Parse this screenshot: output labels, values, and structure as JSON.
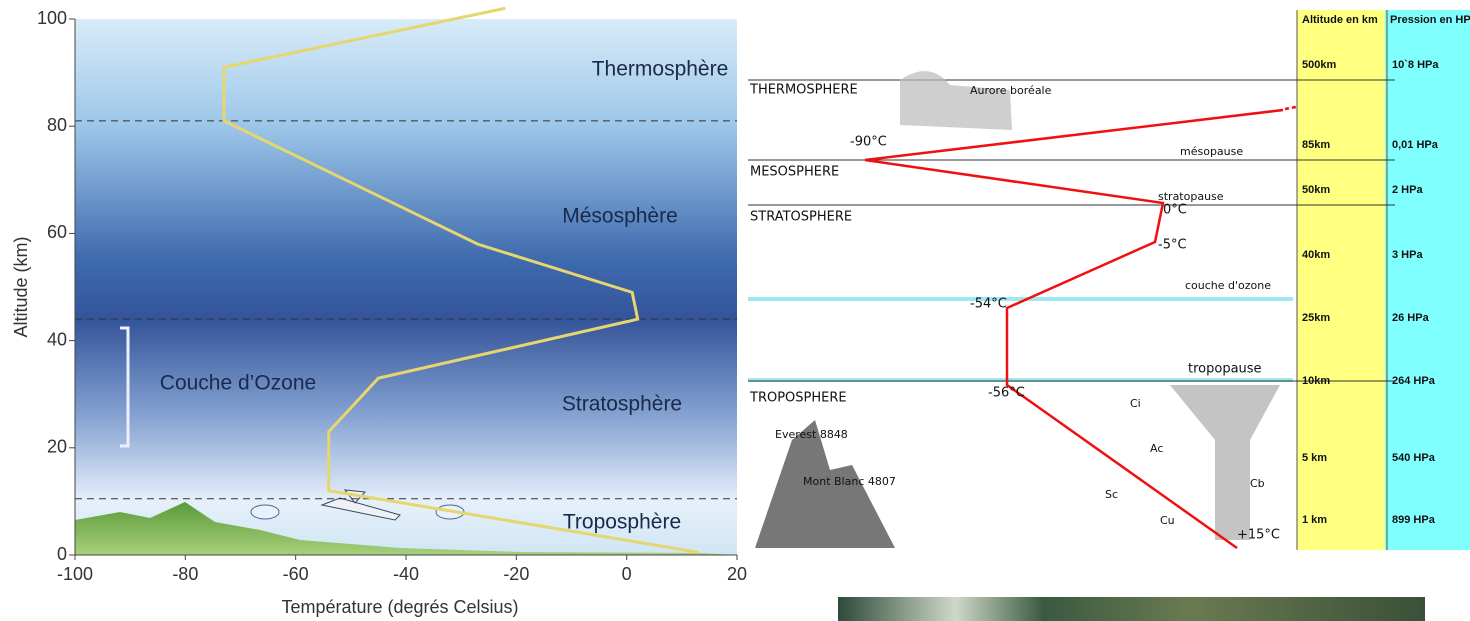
{
  "chart_data": {
    "type": "line",
    "x_label": "Température (degrés Celsius)",
    "y_label": "Altitude (km)",
    "x": [
      13,
      -54,
      -54,
      -45,
      2,
      1,
      -27,
      -73,
      -73,
      -22
    ],
    "values": [
      0.5,
      12,
      23,
      33,
      44,
      49,
      58,
      81,
      91,
      102
    ],
    "color": "#e6d66e",
    "xlim": [
      -100,
      20
    ],
    "xticks": [
      -100,
      -80,
      -60,
      -40,
      -20,
      0,
      20
    ],
    "ylim": [
      0,
      100
    ],
    "yticks": [
      0,
      20,
      40,
      60,
      80,
      100
    ],
    "boundaries": [
      10.5,
      44,
      81
    ],
    "annotations": [
      "Thermosphère",
      "Mésosphère",
      "Stratosphère",
      "Troposphère",
      "Couche d’Ozone"
    ]
  },
  "diagram": {
    "columns": [
      "Altitude en km",
      "Pression en HPa"
    ],
    "rows": [
      [
        "500km",
        "10`8 HPa"
      ],
      [
        "85km",
        "0,01 HPa"
      ],
      [
        "50km",
        "2 HPa"
      ],
      [
        "40km",
        "3 HPa"
      ],
      [
        "25km",
        "26 HPa"
      ],
      [
        "10km",
        "264 HPa"
      ],
      [
        "5 km",
        "540 HPa"
      ],
      [
        "1 km",
        "899 HPa"
      ]
    ],
    "layers": [
      "THERMOSPHERE",
      "MESOSPHERE",
      "STRATOSPHERE",
      "TROPOSPHERE"
    ],
    "boundaries": [
      "mésopause",
      "stratopause",
      "couche d'ozone",
      "tropopause"
    ],
    "temperatures": [
      "-90°C",
      "0°C",
      "-5°C",
      "-54°C",
      "-56°C",
      "+15°C"
    ],
    "labels": [
      "Aurore boréale",
      "Everest 8848",
      "Mont Blanc 4807",
      "Ci",
      "Ac",
      "Sc",
      "Cu",
      "Cb"
    ]
  }
}
